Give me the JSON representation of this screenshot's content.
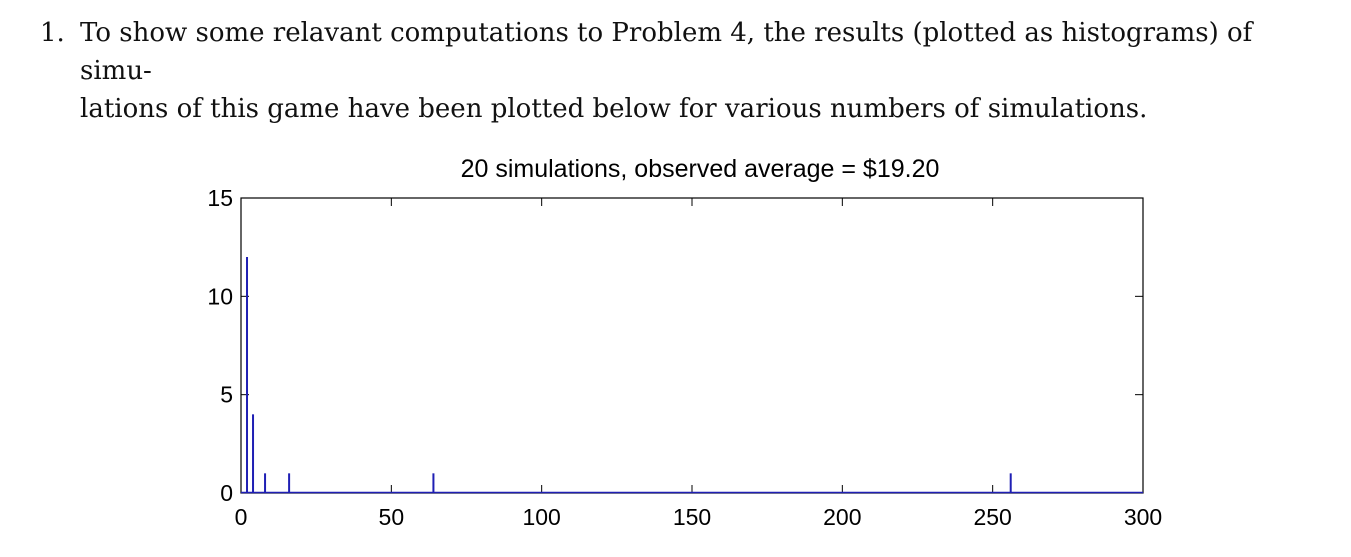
{
  "problem": {
    "number": "1.",
    "line1": "To show some relavant computations to Problem 4, the results (plotted as histograms) of simu-",
    "line2": "lations of this game have been plotted below for various numbers of simulations."
  },
  "chart_data": {
    "type": "bar",
    "title": "20 simulations, observed average = $19.20",
    "xlabel": "",
    "ylabel": "",
    "xlim": [
      0,
      300
    ],
    "ylim": [
      0,
      15
    ],
    "xticks": [
      0,
      50,
      100,
      150,
      200,
      250,
      300
    ],
    "yticks": [
      0,
      5,
      10,
      15
    ],
    "x": [
      2,
      4,
      8,
      16,
      64,
      256
    ],
    "values": [
      12,
      4,
      1,
      1,
      1,
      1
    ],
    "bar_color": "#1f1fb4"
  }
}
